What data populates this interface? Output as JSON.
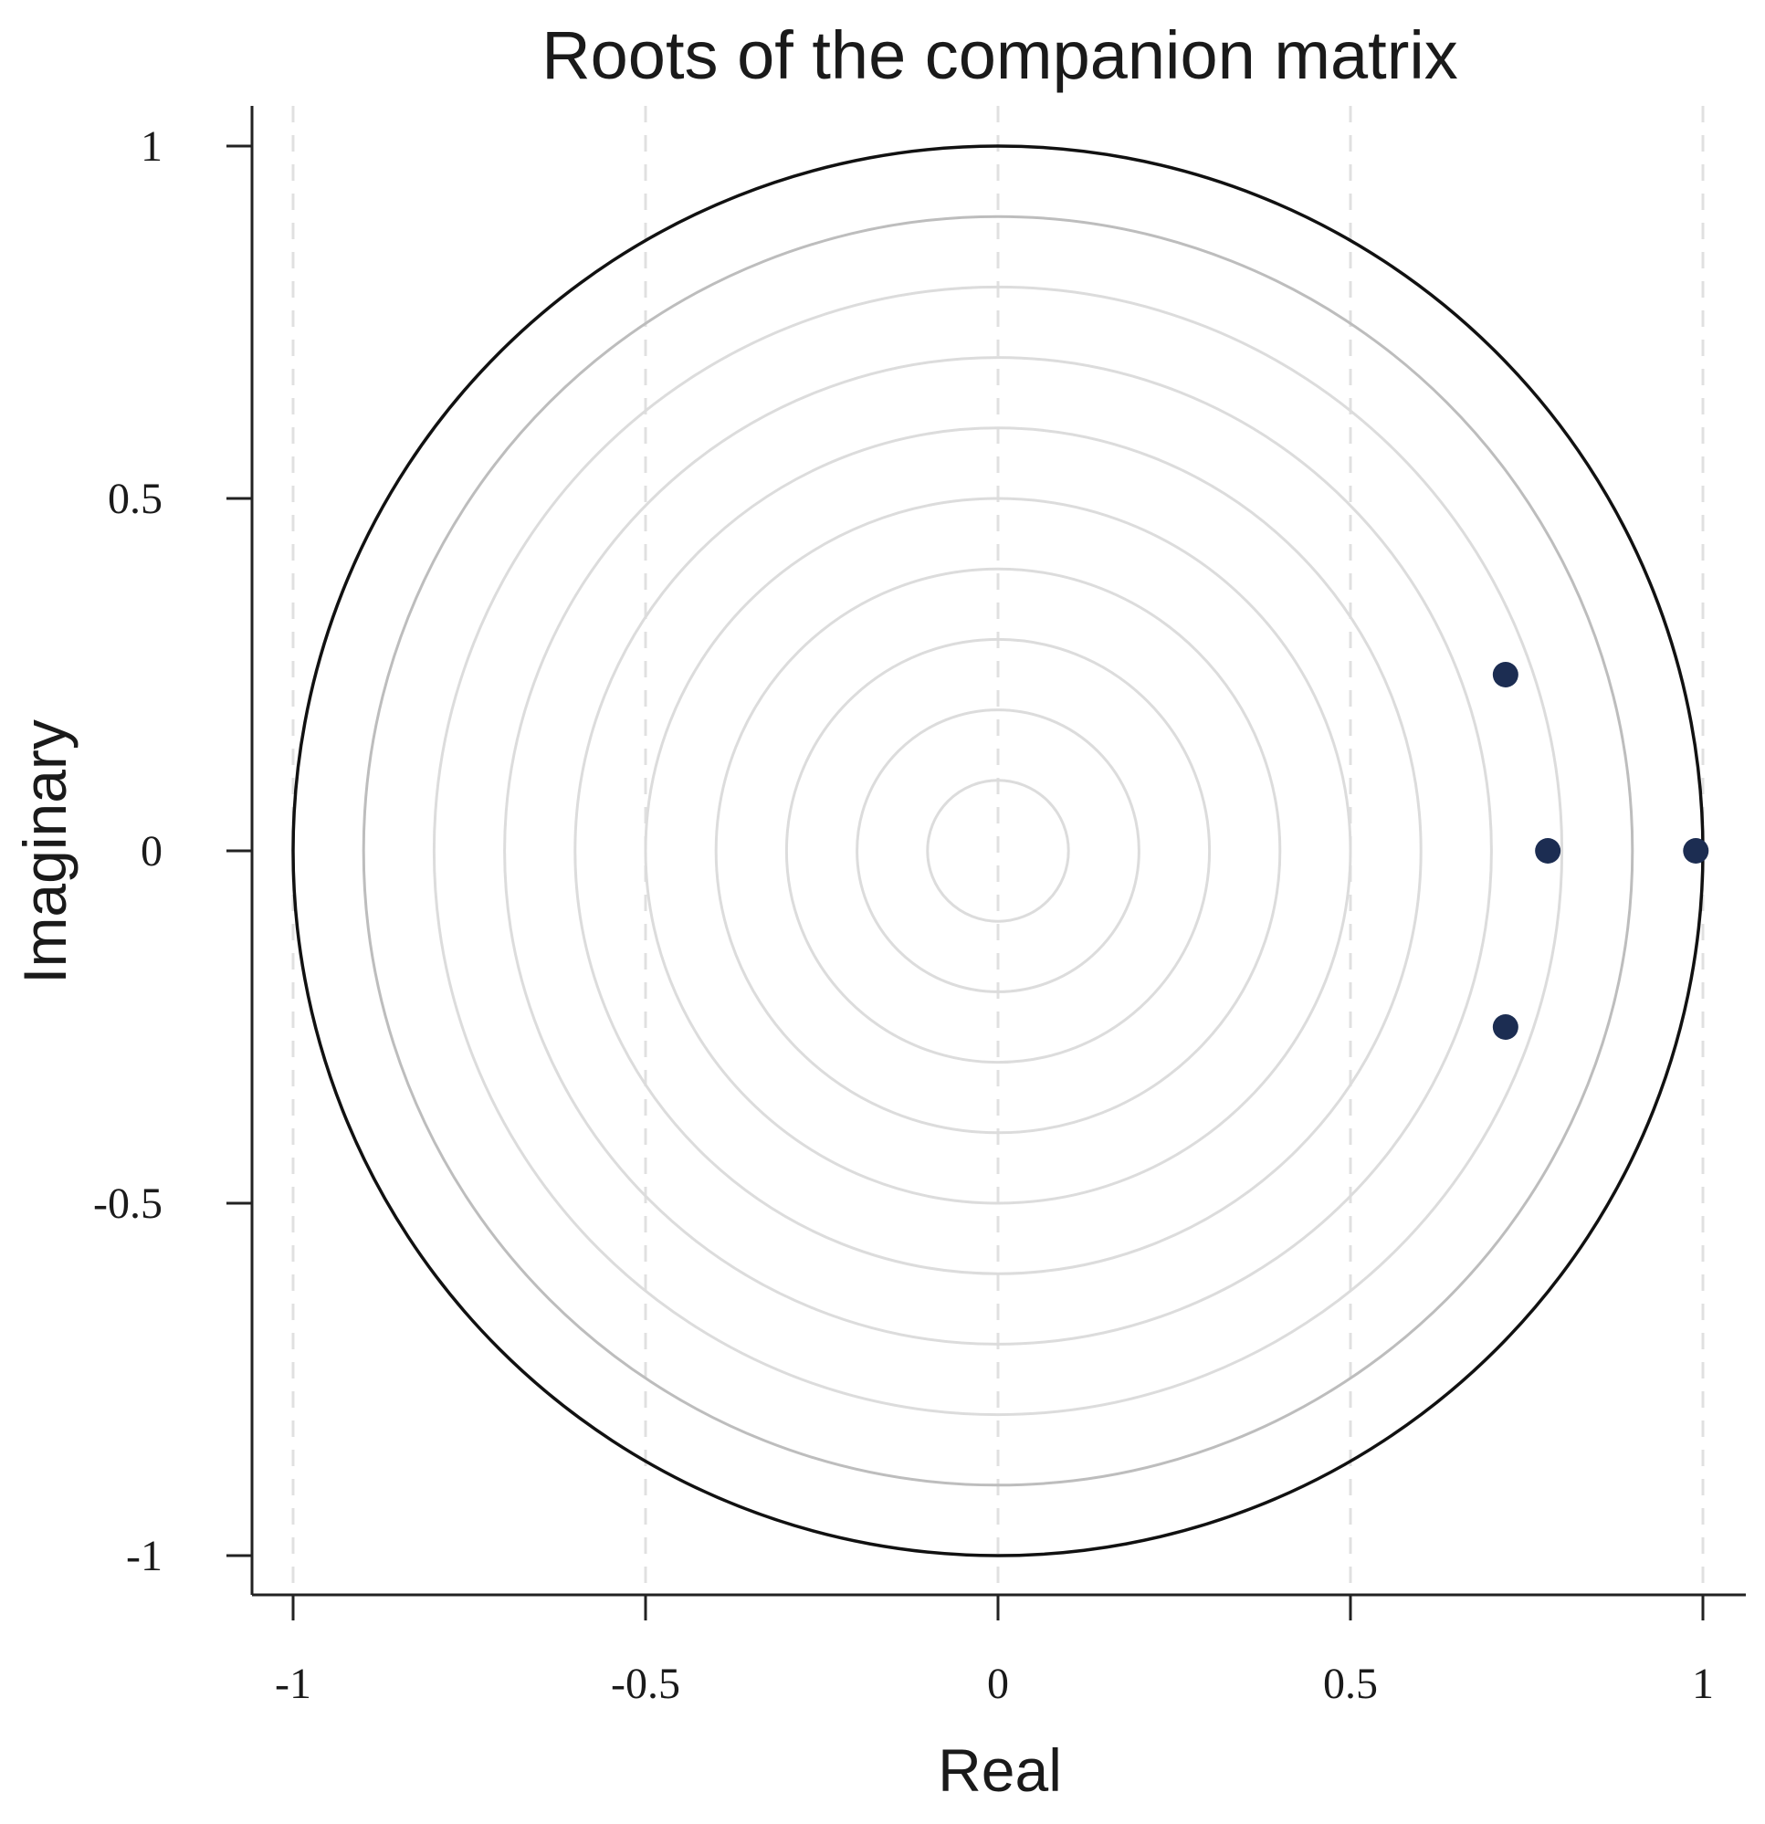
{
  "chart_data": {
    "type": "scatter",
    "title": "Roots of the companion matrix",
    "xlabel": "Real",
    "ylabel": "Imaginary",
    "xlim": [
      -1.05,
      1.06
    ],
    "ylim": [
      -1.06,
      1.06
    ],
    "x_ticks": [
      -1,
      -0.5,
      0,
      0.5,
      1
    ],
    "y_ticks": [
      -1,
      -0.5,
      0,
      0.5,
      1
    ],
    "x_tick_labels": [
      "-1",
      "-0.5",
      "0",
      "0.5",
      "1"
    ],
    "y_tick_labels": [
      "-1",
      "-0.5",
      "0",
      "0.5",
      "1"
    ],
    "x_grid": "dashed vertical lines at x ticks",
    "y_grid": false,
    "unit_circle_radius": 1,
    "reference_circle_radii": [
      0.9,
      0.8,
      0.7,
      0.6,
      0.5,
      0.4,
      0.3,
      0.2,
      0.1
    ],
    "points": [
      {
        "x": 0.72,
        "y": 0.25
      },
      {
        "x": 0.78,
        "y": 0.0
      },
      {
        "x": 0.99,
        "y": 0.0
      },
      {
        "x": 0.72,
        "y": -0.25
      }
    ],
    "colors": {
      "point": "#1c2d52",
      "unit_circle": "#111111",
      "reference_circle_outer": "#bdbdbd",
      "reference_circle_inner": "#dcdcdc",
      "grid": "#e0e0e0",
      "axis": "#222222"
    }
  }
}
